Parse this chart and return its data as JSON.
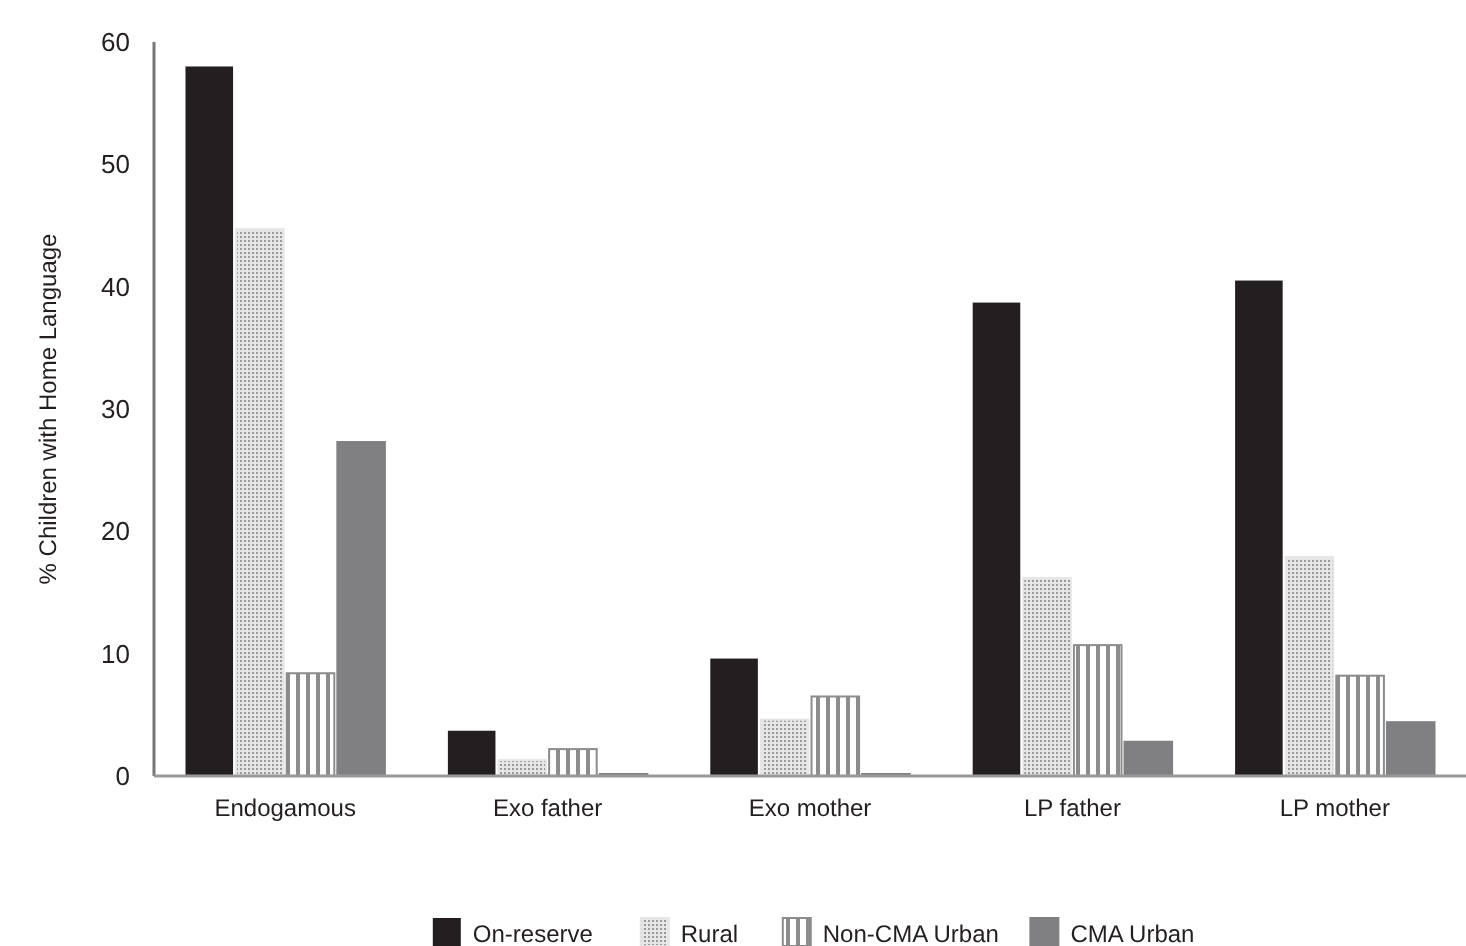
{
  "chart_data": {
    "type": "bar",
    "ylabel": "% Children with Home Language",
    "categories": [
      "Endogamous",
      "Exo father",
      "Exo mother",
      "LP father",
      "LP mother"
    ],
    "series": [
      {
        "name": "On-reserve",
        "color": "#231f20",
        "values": [
          58,
          3.7,
          9.6,
          38.7,
          40.5
        ]
      },
      {
        "name": "Rural",
        "color": "#e6e6e6",
        "values": [
          44.7,
          1.3,
          4.6,
          16.2,
          17.9
        ]
      },
      {
        "name": "Non-CMA Urban",
        "color": "#8c8c8c",
        "values": [
          8.4,
          2.2,
          6.5,
          10.7,
          8.2
        ]
      },
      {
        "name": "CMA Urban",
        "color": "#808083",
        "values": [
          27.3,
          0,
          0,
          2.8,
          4.4
        ]
      }
    ],
    "ylim": [
      0,
      60
    ],
    "yticks": [
      0,
      10,
      20,
      30,
      40,
      50,
      60
    ],
    "grid": false,
    "legend": "bottom"
  }
}
